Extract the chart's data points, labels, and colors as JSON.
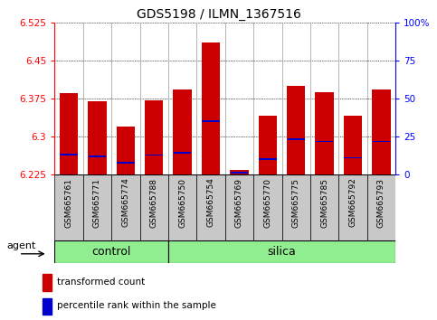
{
  "title": "GDS5198 / ILMN_1367516",
  "samples": [
    "GSM665761",
    "GSM665771",
    "GSM665774",
    "GSM665788",
    "GSM665750",
    "GSM665754",
    "GSM665769",
    "GSM665770",
    "GSM665775",
    "GSM665785",
    "GSM665792",
    "GSM665793"
  ],
  "groups": [
    "control",
    "control",
    "control",
    "control",
    "silica",
    "silica",
    "silica",
    "silica",
    "silica",
    "silica",
    "silica",
    "silica"
  ],
  "bar_bottoms": [
    6.225,
    6.225,
    6.225,
    6.225,
    6.225,
    6.225,
    6.225,
    6.225,
    6.225,
    6.225,
    6.225,
    6.225
  ],
  "bar_tops": [
    6.385,
    6.37,
    6.32,
    6.372,
    6.393,
    6.485,
    6.233,
    6.34,
    6.4,
    6.388,
    6.34,
    6.393
  ],
  "percentile_vals": [
    6.264,
    6.26,
    6.248,
    6.263,
    6.268,
    6.33,
    6.228,
    6.255,
    6.295,
    6.29,
    6.258,
    6.29
  ],
  "ylim_left": [
    6.225,
    6.525
  ],
  "ylim_right": [
    0,
    100
  ],
  "yticks_left": [
    6.225,
    6.3,
    6.375,
    6.45,
    6.525
  ],
  "ytick_labels_left": [
    "6.225",
    "6.3",
    "6.375",
    "6.45",
    "6.525"
  ],
  "yticks_right": [
    0,
    25,
    50,
    75,
    100
  ],
  "ytick_labels_right": [
    "0",
    "25",
    "50",
    "75",
    "100%"
  ],
  "bar_color": "#CC0000",
  "percentile_color": "#0000CC",
  "bar_width": 0.65,
  "legend_red": "transformed count",
  "legend_blue": "percentile rank within the sample",
  "agent_label": "agent",
  "control_label": "control",
  "silica_label": "silica",
  "n_control": 4,
  "n_silica": 8,
  "sample_box_color": "#C8C8C8",
  "group_box_color": "#90EE90",
  "separator_color": "#999999"
}
